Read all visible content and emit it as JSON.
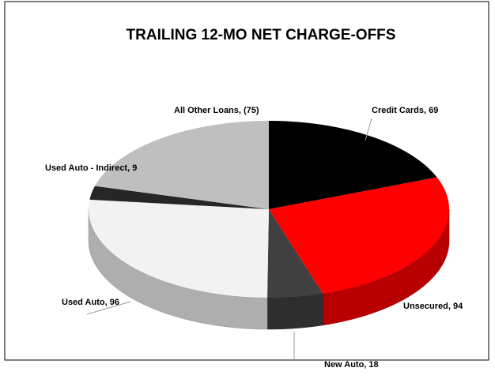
{
  "chart_data": {
    "type": "pie",
    "title": "TRAILING 12-MO NET CHARGE-OFFS",
    "values": [
      69,
      94,
      18,
      96,
      9,
      -75
    ],
    "value_labels": [
      "Credit Cards, 69",
      "Unsecured, 94",
      "New Auto, 18",
      "Used Auto, 96",
      "Used Auto - Indirect, 9",
      "All Other Loans, (75)"
    ],
    "colors": [
      "#000000",
      "#ff0000",
      "#404040",
      "#f2f2f2",
      "#262626",
      "#bfbfbf"
    ],
    "three_d": true
  }
}
